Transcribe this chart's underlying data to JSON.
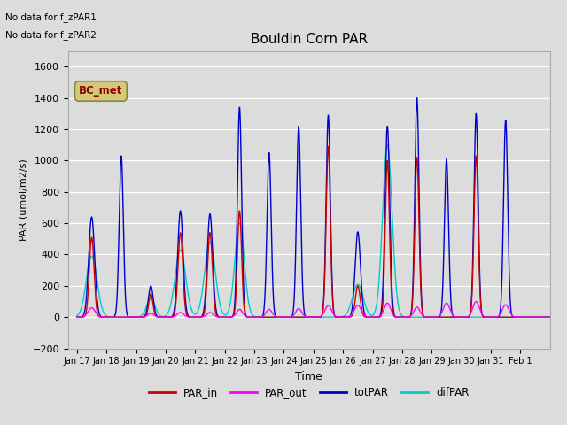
{
  "title": "Bouldin Corn PAR",
  "ylabel": "PAR (umol/m2/s)",
  "xlabel": "Time",
  "ylim": [
    -200,
    1700
  ],
  "yticks": [
    -200,
    0,
    200,
    400,
    600,
    800,
    1000,
    1200,
    1400,
    1600
  ],
  "no_data_text": [
    "No data for f_zPAR1",
    "No data for f_zPAR2"
  ],
  "legend_box_label": "BC_met",
  "legend_box_color": "#d4c87a",
  "legend_box_text_color": "#8b0000",
  "colors": {
    "PAR_in": "#cc0000",
    "PAR_out": "#ff00ff",
    "totPAR": "#0000cc",
    "difPAR": "#00cccc"
  },
  "background_color": "#dcdcdc",
  "plot_bg_color": "#dcdcdc",
  "day_peaks": [
    {
      "day": 17,
      "totPAR": 640,
      "totW": 0.1,
      "PAR_in": 510,
      "inW": 0.08,
      "difPAR": 390,
      "difW": 0.18,
      "PAR_out": 60,
      "outW": 0.12
    },
    {
      "day": 18,
      "totPAR": 1030,
      "totW": 0.07,
      "PAR_in": 0,
      "inW": 0.07,
      "difPAR": 0,
      "difW": 0.15,
      "PAR_out": 0,
      "outW": 0.1
    },
    {
      "day": 19,
      "totPAR": 200,
      "totW": 0.08,
      "PAR_in": 150,
      "inW": 0.07,
      "difPAR": 120,
      "difW": 0.14,
      "PAR_out": 25,
      "outW": 0.1
    },
    {
      "day": 20,
      "totPAR": 680,
      "totW": 0.09,
      "PAR_in": 540,
      "inW": 0.08,
      "difPAR": 430,
      "difW": 0.18,
      "PAR_out": 30,
      "outW": 0.11
    },
    {
      "day": 21,
      "totPAR": 660,
      "totW": 0.09,
      "PAR_in": 540,
      "inW": 0.08,
      "difPAR": 480,
      "difW": 0.18,
      "PAR_out": 30,
      "outW": 0.11
    },
    {
      "day": 22,
      "totPAR": 1340,
      "totW": 0.07,
      "PAR_in": 680,
      "inW": 0.07,
      "difPAR": 600,
      "difW": 0.16,
      "PAR_out": 50,
      "outW": 0.1
    },
    {
      "day": 23,
      "totPAR": 1050,
      "totW": 0.07,
      "PAR_in": 0,
      "inW": 0.07,
      "difPAR": 0,
      "difW": 0.16,
      "PAR_out": 50,
      "outW": 0.1
    },
    {
      "day": 24,
      "totPAR": 1220,
      "totW": 0.07,
      "PAR_in": 0,
      "inW": 0.07,
      "difPAR": 0,
      "difW": 0.16,
      "PAR_out": 55,
      "outW": 0.1
    },
    {
      "day": 25,
      "totPAR": 1290,
      "totW": 0.07,
      "PAR_in": 1090,
      "inW": 0.07,
      "difPAR": 0,
      "difW": 0.16,
      "PAR_out": 75,
      "outW": 0.11
    },
    {
      "day": 26,
      "totPAR": 545,
      "totW": 0.09,
      "PAR_in": 200,
      "inW": 0.08,
      "difPAR": 210,
      "difW": 0.18,
      "PAR_out": 75,
      "outW": 0.12
    },
    {
      "day": 27,
      "totPAR": 1220,
      "totW": 0.08,
      "PAR_in": 1000,
      "inW": 0.07,
      "difPAR": 1100,
      "difW": 0.16,
      "PAR_out": 90,
      "outW": 0.11
    },
    {
      "day": 28,
      "totPAR": 1400,
      "totW": 0.07,
      "PAR_in": 1020,
      "inW": 0.07,
      "difPAR": 0,
      "difW": 0.16,
      "PAR_out": 65,
      "outW": 0.1
    },
    {
      "day": 29,
      "totPAR": 1010,
      "totW": 0.07,
      "PAR_in": 0,
      "inW": 0.07,
      "difPAR": 0,
      "difW": 0.16,
      "PAR_out": 90,
      "outW": 0.11
    },
    {
      "day": 30,
      "totPAR": 1300,
      "totW": 0.07,
      "PAR_in": 1030,
      "inW": 0.07,
      "difPAR": 0,
      "difW": 0.16,
      "PAR_out": 100,
      "outW": 0.11
    },
    {
      "day": 31,
      "totPAR": 1260,
      "totW": 0.07,
      "PAR_in": 0,
      "inW": 0.07,
      "difPAR": 0,
      "difW": 0.16,
      "PAR_out": 80,
      "outW": 0.11
    }
  ]
}
